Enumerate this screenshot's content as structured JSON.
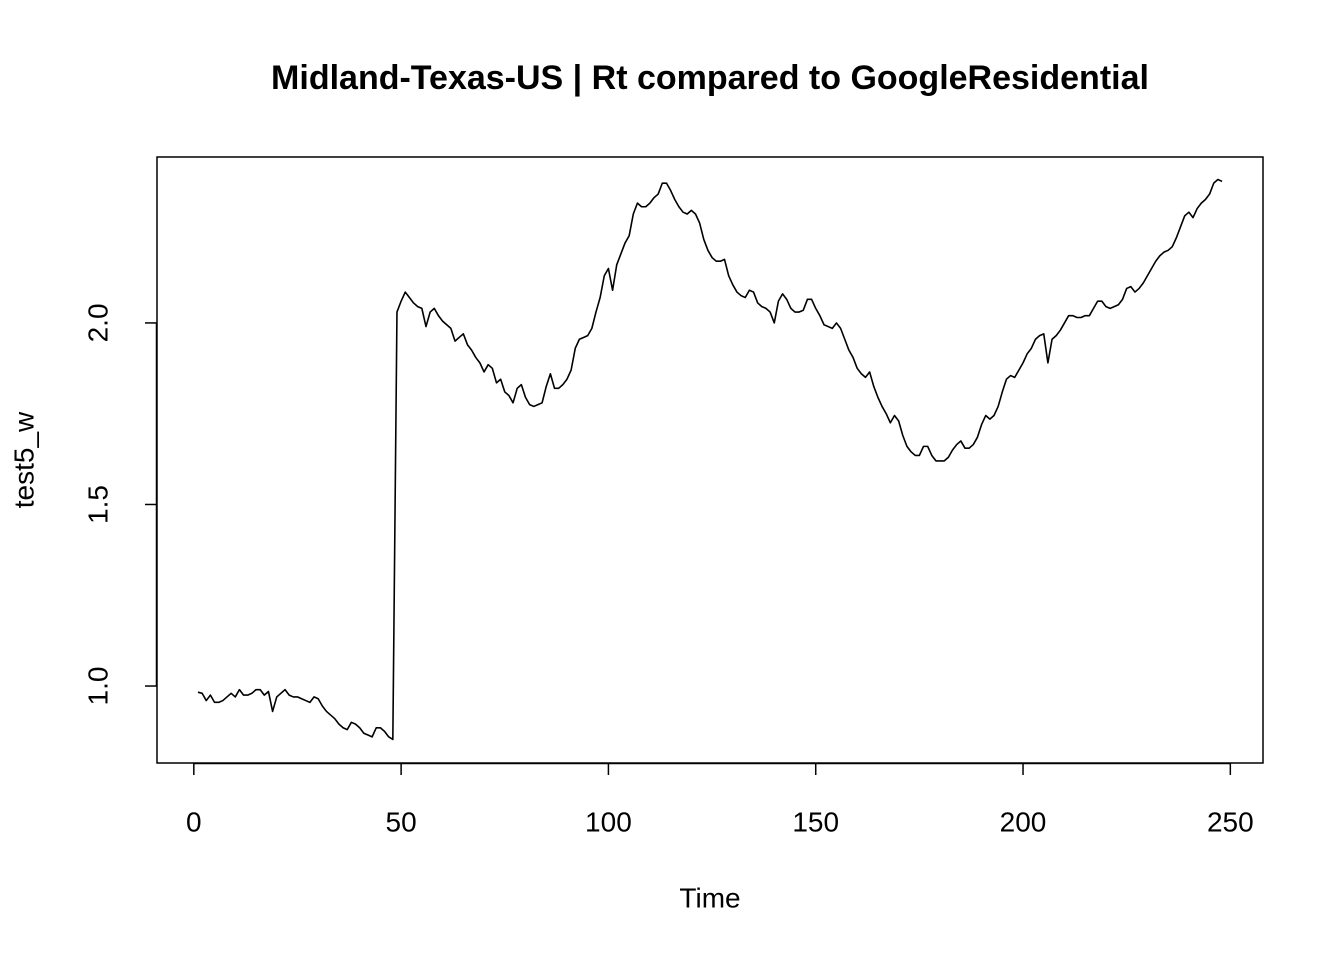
{
  "chart_data": {
    "type": "line",
    "title": "Midland-Texas-US | Rt compared to GoogleResidential",
    "xlabel": "Time",
    "ylabel": "test5_w",
    "color": "#000000",
    "x": [
      1,
      2,
      3,
      4,
      5,
      6,
      7,
      8,
      9,
      10,
      11,
      12,
      13,
      14,
      15,
      16,
      17,
      18,
      19,
      20,
      21,
      22,
      23,
      24,
      25,
      26,
      27,
      28,
      29,
      30,
      31,
      32,
      33,
      34,
      35,
      36,
      37,
      38,
      39,
      40,
      41,
      42,
      43,
      44,
      45,
      46,
      47,
      48,
      49,
      50,
      51,
      52,
      53,
      54,
      55,
      56,
      57,
      58,
      59,
      60,
      61,
      62,
      63,
      64,
      65,
      66,
      67,
      68,
      69,
      70,
      71,
      72,
      73,
      74,
      75,
      76,
      77,
      78,
      79,
      80,
      81,
      82,
      83,
      84,
      85,
      86,
      87,
      88,
      89,
      90,
      91,
      92,
      93,
      94,
      95,
      96,
      97,
      98,
      99,
      100,
      101,
      102,
      103,
      104,
      105,
      106,
      107,
      108,
      109,
      110,
      111,
      112,
      113,
      114,
      115,
      116,
      117,
      118,
      119,
      120,
      121,
      122,
      123,
      124,
      125,
      126,
      127,
      128,
      129,
      130,
      131,
      132,
      133,
      134,
      135,
      136,
      137,
      138,
      139,
      140,
      141,
      142,
      143,
      144,
      145,
      146,
      147,
      148,
      149,
      150,
      151,
      152,
      153,
      154,
      155,
      156,
      157,
      158,
      159,
      160,
      161,
      162,
      163,
      164,
      165,
      166,
      167,
      168,
      169,
      170,
      171,
      172,
      173,
      174,
      175,
      176,
      177,
      178,
      179,
      180,
      181,
      182,
      183,
      184,
      185,
      186,
      187,
      188,
      189,
      190,
      191,
      192,
      193,
      194,
      195,
      196,
      197,
      198,
      199,
      200,
      201,
      202,
      203,
      204,
      205,
      206,
      207,
      208,
      209,
      210,
      211,
      212,
      213,
      214,
      215,
      216,
      217,
      218,
      219,
      220,
      221,
      222,
      223,
      224,
      225,
      226,
      227,
      228,
      229,
      230,
      231,
      232,
      233,
      234,
      235,
      236,
      237,
      238,
      239,
      240,
      241,
      242,
      243,
      244,
      245,
      246,
      247,
      248
    ],
    "values": [
      0.983,
      0.98,
      0.96,
      0.975,
      0.955,
      0.955,
      0.96,
      0.97,
      0.98,
      0.97,
      0.99,
      0.975,
      0.975,
      0.98,
      0.99,
      0.99,
      0.975,
      0.985,
      0.93,
      0.97,
      0.98,
      0.99,
      0.975,
      0.97,
      0.97,
      0.965,
      0.96,
      0.955,
      0.97,
      0.965,
      0.945,
      0.93,
      0.92,
      0.91,
      0.895,
      0.885,
      0.88,
      0.9,
      0.895,
      0.885,
      0.87,
      0.865,
      0.86,
      0.885,
      0.885,
      0.875,
      0.86,
      0.853,
      2.03,
      2.06,
      2.085,
      2.07,
      2.055,
      2.045,
      2.04,
      1.99,
      2.03,
      2.04,
      2.02,
      2.005,
      1.995,
      1.985,
      1.95,
      1.96,
      1.97,
      1.94,
      1.925,
      1.905,
      1.89,
      1.865,
      1.885,
      1.875,
      1.835,
      1.845,
      1.81,
      1.8,
      1.78,
      1.82,
      1.83,
      1.795,
      1.775,
      1.77,
      1.775,
      1.78,
      1.825,
      1.86,
      1.82,
      1.82,
      1.83,
      1.845,
      1.87,
      1.93,
      1.955,
      1.96,
      1.965,
      1.985,
      2.03,
      2.07,
      2.13,
      2.15,
      2.09,
      2.16,
      2.19,
      2.22,
      2.24,
      2.3,
      2.33,
      2.32,
      2.32,
      2.33,
      2.345,
      2.355,
      2.385,
      2.385,
      2.365,
      2.34,
      2.32,
      2.305,
      2.3,
      2.31,
      2.3,
      2.275,
      2.23,
      2.2,
      2.18,
      2.17,
      2.17,
      2.175,
      2.13,
      2.105,
      2.085,
      2.075,
      2.07,
      2.09,
      2.085,
      2.055,
      2.045,
      2.04,
      2.03,
      2.0,
      2.06,
      2.08,
      2.065,
      2.04,
      2.03,
      2.03,
      2.035,
      2.065,
      2.065,
      2.04,
      2.02,
      1.995,
      1.99,
      1.985,
      2.0,
      1.985,
      1.955,
      1.925,
      1.905,
      1.875,
      1.86,
      1.85,
      1.865,
      1.825,
      1.795,
      1.77,
      1.75,
      1.725,
      1.745,
      1.73,
      1.69,
      1.66,
      1.645,
      1.635,
      1.635,
      1.66,
      1.66,
      1.635,
      1.62,
      1.62,
      1.62,
      1.63,
      1.65,
      1.665,
      1.675,
      1.655,
      1.655,
      1.665,
      1.685,
      1.72,
      1.745,
      1.735,
      1.745,
      1.77,
      1.81,
      1.845,
      1.855,
      1.85,
      1.87,
      1.89,
      1.915,
      1.93,
      1.955,
      1.965,
      1.97,
      1.89,
      1.955,
      1.965,
      1.98,
      2.0,
      2.02,
      2.02,
      2.015,
      2.015,
      2.02,
      2.02,
      2.04,
      2.06,
      2.06,
      2.045,
      2.04,
      2.045,
      2.05,
      2.065,
      2.095,
      2.1,
      2.085,
      2.095,
      2.11,
      2.13,
      2.15,
      2.17,
      2.185,
      2.195,
      2.2,
      2.21,
      2.235,
      2.265,
      2.295,
      2.305,
      2.29,
      2.315,
      2.33,
      2.34,
      2.355,
      2.385,
      2.395,
      2.39
    ],
    "xlim": [
      -8.88,
      257.88
    ],
    "ylim": [
      0.788,
      2.457
    ],
    "xticks": [
      0,
      50,
      100,
      150,
      200,
      250
    ],
    "yticks": [
      {
        "value": 1,
        "label": "1.0"
      },
      1.5,
      {
        "value": 2,
        "label": "2.0"
      }
    ]
  }
}
